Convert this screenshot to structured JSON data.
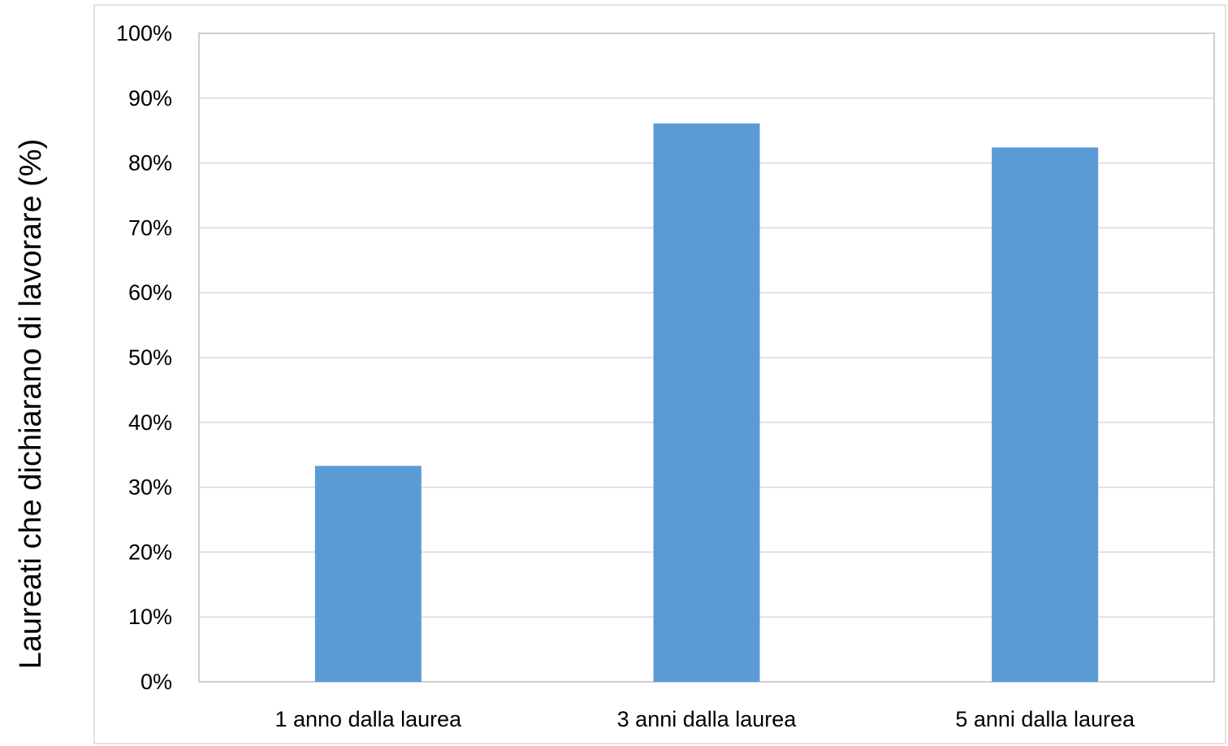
{
  "chart_data": {
    "type": "bar",
    "title": "",
    "xlabel": "",
    "ylabel": "Laureati che dichiarano di lavorare (%)",
    "categories": [
      "1 anno dalla laurea",
      "3 anni dalla laurea",
      "5 anni dalla laurea"
    ],
    "values": [
      33.3,
      86.1,
      82.4
    ],
    "ylim": [
      0,
      100
    ],
    "yticks": [
      0,
      10,
      20,
      30,
      40,
      50,
      60,
      70,
      80,
      90,
      100
    ],
    "ytick_labels": [
      "0%",
      "10%",
      "20%",
      "30%",
      "40%",
      "50%",
      "60%",
      "70%",
      "80%",
      "90%",
      "100%"
    ],
    "grid": true,
    "legend": "none",
    "bar_color": "#5b9bd5",
    "grid_color": "#d9d9d9",
    "frame_color": "#bfbfbf"
  }
}
